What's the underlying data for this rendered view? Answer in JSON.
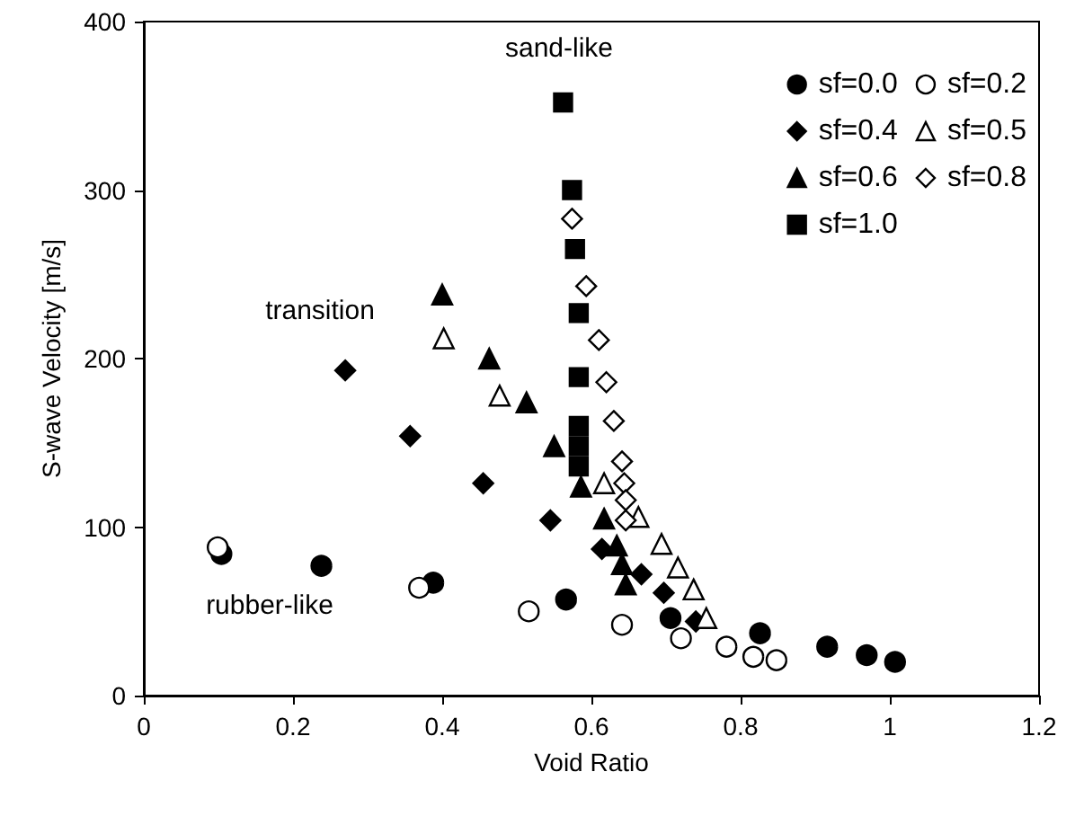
{
  "chart_data": {
    "type": "scatter",
    "xlabel": "Void Ratio",
    "ylabel": "S-wave Velocity [m/s]",
    "xlim": [
      0,
      1.2
    ],
    "xticks": [
      0,
      0.2,
      0.4,
      0.6,
      0.8,
      1,
      1.2
    ],
    "ylim": [
      0,
      400
    ],
    "yticks": [
      0,
      100,
      200,
      300,
      400
    ],
    "grid": false,
    "legend": "top right",
    "annotations": [
      "rubber-like",
      "transition",
      "sand-like"
    ],
    "series": [
      {
        "name": "sf=0.0",
        "color": "#000000",
        "marker": "circle",
        "x": [
          0.104,
          0.238,
          0.388,
          0.566,
          0.706,
          0.826,
          0.916,
          0.969,
          1.007
        ],
        "values": [
          84,
          77,
          67,
          57,
          46,
          37,
          29,
          24,
          20
        ]
      },
      {
        "name": "sf=0.2",
        "color": "#ffffff",
        "marker": "circle",
        "x": [
          0.099,
          0.369,
          0.516,
          0.641,
          0.72,
          0.781,
          0.817,
          0.848
        ],
        "values": [
          88,
          64,
          50,
          42,
          34,
          29,
          23,
          21
        ]
      },
      {
        "name": "sf=0.4",
        "color": "#000000",
        "marker": "diamond",
        "x": [
          0.27,
          0.357,
          0.455,
          0.545,
          0.614,
          0.667,
          0.697,
          0.74
        ],
        "values": [
          193,
          154,
          126,
          104,
          87,
          72,
          61,
          44
        ]
      },
      {
        "name": "sf=0.5",
        "color": "#ffffff",
        "marker": "triangle",
        "x": [
          0.402,
          0.477,
          0.617,
          0.663,
          0.694,
          0.716,
          0.737,
          0.754
        ],
        "values": [
          212,
          178,
          126,
          106,
          90,
          76,
          63,
          46
        ]
      },
      {
        "name": "sf=0.6",
        "color": "#000000",
        "marker": "triangle",
        "x": [
          0.4,
          0.463,
          0.513,
          0.55,
          0.586,
          0.617,
          0.634,
          0.641,
          0.646
        ],
        "values": [
          238,
          200,
          174,
          148,
          124,
          105,
          89,
          78,
          66
        ]
      },
      {
        "name": "sf=0.8",
        "color": "#ffffff",
        "marker": "diamond",
        "x": [
          0.574,
          0.593,
          0.61,
          0.62,
          0.63,
          0.641,
          0.644,
          0.646,
          0.646
        ],
        "values": [
          283,
          243,
          211,
          186,
          163,
          139,
          126,
          116,
          104
        ]
      },
      {
        "name": "sf=1.0",
        "color": "#000000",
        "marker": "square",
        "x": [
          0.562,
          0.574,
          0.578,
          0.583,
          0.583,
          0.583,
          0.583,
          0.583
        ],
        "values": [
          352,
          300,
          265,
          227,
          189,
          160,
          148,
          136
        ]
      }
    ]
  }
}
